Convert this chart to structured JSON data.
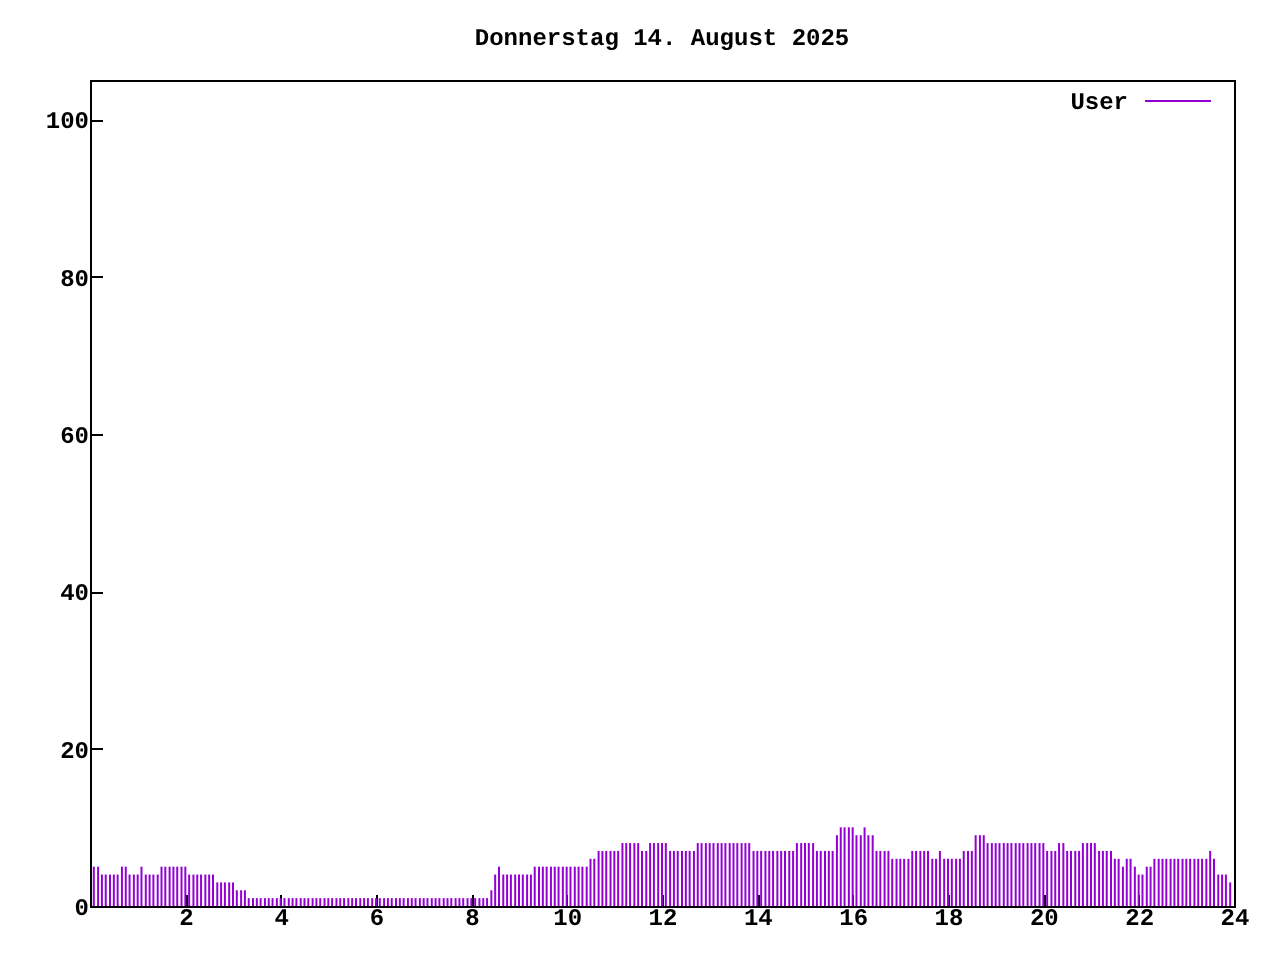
{
  "chart_data": {
    "type": "bar",
    "title": "Donnerstag 14. August 2025",
    "x": [
      0.08,
      0.17,
      0.25,
      0.33,
      0.42,
      0.5,
      0.58,
      0.67,
      0.75,
      0.83,
      0.92,
      1,
      1.08,
      1.17,
      1.25,
      1.33,
      1.42,
      1.5,
      1.58,
      1.67,
      1.75,
      1.83,
      1.92,
      2,
      2.08,
      2.17,
      2.25,
      2.33,
      2.42,
      2.5,
      2.58,
      2.67,
      2.75,
      2.83,
      2.92,
      3,
      3.08,
      3.17,
      3.25,
      3.33,
      3.42,
      3.5,
      3.58,
      3.67,
      3.75,
      3.83,
      3.92,
      4,
      4.08,
      4.17,
      4.25,
      4.33,
      4.42,
      4.5,
      4.58,
      4.67,
      4.75,
      4.83,
      4.92,
      5,
      5.08,
      5.17,
      5.25,
      5.33,
      5.42,
      5.5,
      5.58,
      5.67,
      5.75,
      5.83,
      5.92,
      6,
      6.08,
      6.17,
      6.25,
      6.33,
      6.42,
      6.5,
      6.58,
      6.67,
      6.75,
      6.83,
      6.92,
      7,
      7.08,
      7.17,
      7.25,
      7.33,
      7.42,
      7.5,
      7.58,
      7.67,
      7.75,
      7.83,
      7.92,
      8,
      8.08,
      8.17,
      8.25,
      8.33,
      8.42,
      8.5,
      8.58,
      8.67,
      8.75,
      8.83,
      8.92,
      9,
      9.08,
      9.17,
      9.25,
      9.33,
      9.42,
      9.5,
      9.58,
      9.67,
      9.75,
      9.83,
      9.92,
      10,
      10.08,
      10.17,
      10.25,
      10.33,
      10.42,
      10.5,
      10.58,
      10.67,
      10.75,
      10.83,
      10.92,
      11,
      11.08,
      11.17,
      11.25,
      11.33,
      11.42,
      11.5,
      11.58,
      11.67,
      11.75,
      11.83,
      11.92,
      12,
      12.08,
      12.17,
      12.25,
      12.33,
      12.42,
      12.5,
      12.58,
      12.67,
      12.75,
      12.83,
      12.92,
      13,
      13.08,
      13.17,
      13.25,
      13.33,
      13.42,
      13.5,
      13.58,
      13.67,
      13.75,
      13.83,
      13.92,
      14,
      14.08,
      14.17,
      14.25,
      14.33,
      14.42,
      14.5,
      14.58,
      14.67,
      14.75,
      14.83,
      14.92,
      15,
      15.08,
      15.17,
      15.25,
      15.33,
      15.42,
      15.5,
      15.58,
      15.67,
      15.75,
      15.83,
      15.92,
      16,
      16.08,
      16.17,
      16.25,
      16.33,
      16.42,
      16.5,
      16.58,
      16.67,
      16.75,
      16.83,
      16.92,
      17,
      17.08,
      17.17,
      17.25,
      17.33,
      17.42,
      17.5,
      17.58,
      17.67,
      17.75,
      17.83,
      17.92,
      18,
      18.08,
      18.17,
      18.25,
      18.33,
      18.42,
      18.5,
      18.58,
      18.67,
      18.75,
      18.83,
      18.92,
      19,
      19.08,
      19.17,
      19.25,
      19.33,
      19.42,
      19.5,
      19.58,
      19.67,
      19.75,
      19.83,
      19.92,
      20,
      20.08,
      20.17,
      20.25,
      20.33,
      20.42,
      20.5,
      20.58,
      20.67,
      20.75,
      20.83,
      20.92,
      21,
      21.08,
      21.17,
      21.25,
      21.33,
      21.42,
      21.5,
      21.58,
      21.67,
      21.75,
      21.83,
      21.92,
      22,
      22.08,
      22.17,
      22.25,
      22.33,
      22.42,
      22.5,
      22.58,
      22.67,
      22.75,
      22.83,
      22.92,
      23,
      23.08,
      23.17,
      23.25,
      23.33,
      23.42,
      23.5,
      23.58,
      23.67,
      23.75,
      23.83,
      23.92
    ],
    "series": [
      {
        "name": "User",
        "color": "#9400d3",
        "values": [
          5,
          5,
          4,
          4,
          4,
          4,
          4,
          5,
          5,
          4,
          4,
          4,
          5,
          4,
          4,
          4,
          4,
          5,
          5,
          5,
          5,
          5,
          5,
          5,
          4,
          4,
          4,
          4,
          4,
          4,
          4,
          3,
          3,
          3,
          3,
          3,
          2,
          2,
          2,
          1,
          1,
          1,
          1,
          1,
          1,
          1,
          1,
          1,
          1,
          1,
          1,
          1,
          1,
          1,
          1,
          1,
          1,
          1,
          1,
          1,
          1,
          1,
          1,
          1,
          1,
          1,
          1,
          1,
          1,
          1,
          1,
          1,
          1,
          1,
          1,
          1,
          1,
          1,
          1,
          1,
          1,
          1,
          1,
          1,
          1,
          1,
          1,
          1,
          1,
          1,
          1,
          1,
          1,
          1,
          1,
          1,
          1,
          1,
          1,
          1,
          2,
          4,
          5,
          4,
          4,
          4,
          4,
          4,
          4,
          4,
          4,
          5,
          5,
          5,
          5,
          5,
          5,
          5,
          5,
          5,
          5,
          5,
          5,
          5,
          5,
          6,
          6,
          7,
          7,
          7,
          7,
          7,
          7,
          8,
          8,
          8,
          8,
          8,
          7,
          7,
          8,
          8,
          8,
          8,
          8,
          7,
          7,
          7,
          7,
          7,
          7,
          7,
          8,
          8,
          8,
          8,
          8,
          8,
          8,
          8,
          8,
          8,
          8,
          8,
          8,
          8,
          7,
          7,
          7,
          7,
          7,
          7,
          7,
          7,
          7,
          7,
          7,
          8,
          8,
          8,
          8,
          8,
          7,
          7,
          7,
          7,
          7,
          9,
          10,
          10,
          10,
          10,
          9,
          9,
          10,
          9,
          9,
          7,
          7,
          7,
          7,
          6,
          6,
          6,
          6,
          6,
          7,
          7,
          7,
          7,
          7,
          6,
          6,
          7,
          6,
          6,
          6,
          6,
          6,
          7,
          7,
          7,
          9,
          9,
          9,
          8,
          8,
          8,
          8,
          8,
          8,
          8,
          8,
          8,
          8,
          8,
          8,
          8,
          8,
          8,
          7,
          7,
          7,
          8,
          8,
          7,
          7,
          7,
          7,
          8,
          8,
          8,
          8,
          7,
          7,
          7,
          7,
          6,
          6,
          5,
          6,
          6,
          5,
          4,
          4,
          5,
          5,
          6,
          6,
          6,
          6,
          6,
          6,
          6,
          6,
          6,
          6,
          6,
          6,
          6,
          6,
          7,
          6,
          4,
          4,
          4,
          3
        ]
      }
    ],
    "xlim": [
      0,
      24
    ],
    "xticks": [
      2,
      4,
      6,
      8,
      10,
      12,
      14,
      16,
      18,
      20,
      22,
      24
    ],
    "ylim": [
      0,
      105
    ],
    "yticks": [
      0,
      20,
      40,
      60,
      80,
      100
    ],
    "legend": "top right",
    "grid": false
  }
}
